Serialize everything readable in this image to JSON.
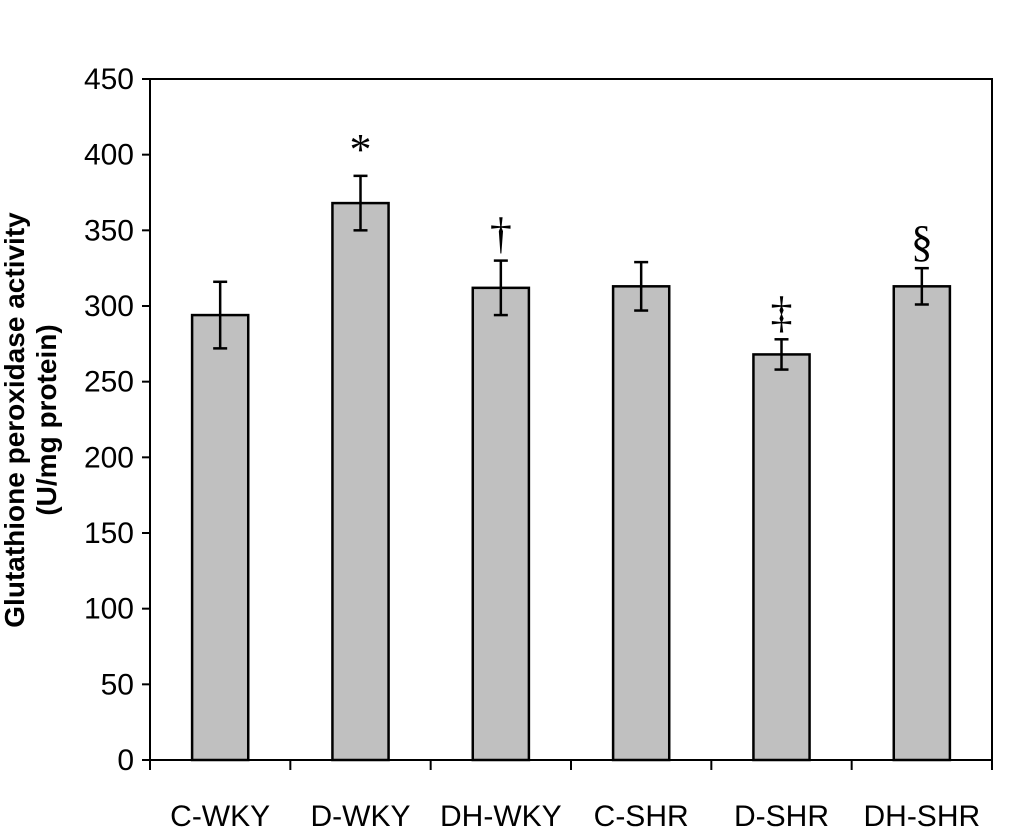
{
  "chart_data": {
    "type": "bar",
    "title": "",
    "xlabel": "",
    "ylabel_lines": [
      "Glutathione peroxidase activity",
      "(U/mg protein)"
    ],
    "categories": [
      "C-WKY",
      "D-WKY",
      "DH-WKY",
      "C-SHR",
      "D-SHR",
      "DH-SHR"
    ],
    "values": [
      294,
      368,
      312,
      313,
      268,
      313
    ],
    "errors": [
      22,
      18,
      18,
      16,
      10,
      12
    ],
    "annotations": [
      "",
      "*",
      "†",
      "",
      "‡",
      "§"
    ],
    "ylim": [
      0,
      450
    ],
    "yticks": [
      0,
      50,
      100,
      150,
      200,
      250,
      300,
      350,
      400,
      450
    ],
    "bar_color": "#c0c0c0",
    "edge_color": "#000000",
    "grid": false
  }
}
